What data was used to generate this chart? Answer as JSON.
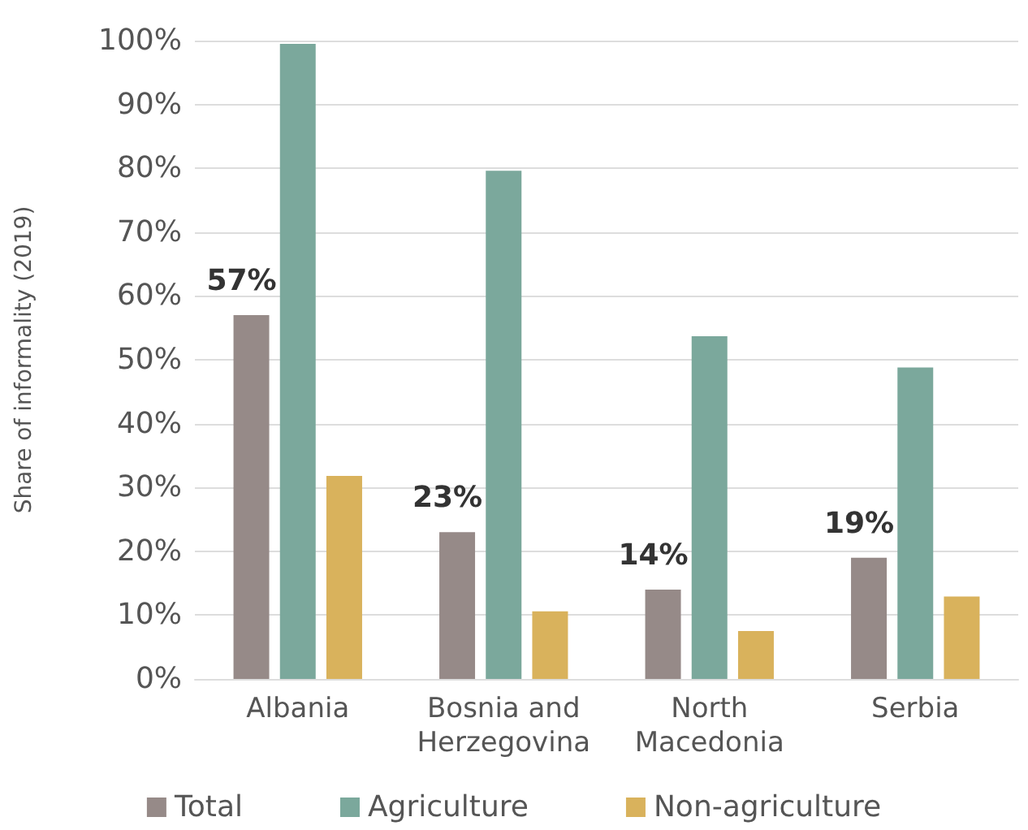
{
  "chart_data": {
    "type": "bar",
    "ylabel": "Share of informality (2019)",
    "categories": [
      "Albania",
      "Bosnia and\nHerzegovina",
      "North\nMacedonia",
      "Serbia"
    ],
    "series": [
      {
        "name": "Total",
        "color": "#968a88",
        "values": [
          57,
          23,
          14,
          19
        ],
        "value_labels": [
          "57%",
          "23%",
          "14%",
          "19%"
        ]
      },
      {
        "name": "Agriculture",
        "color": "#7ba89c",
        "values": [
          99.5,
          79.6,
          53.7,
          48.8
        ]
      },
      {
        "name": "Non-agriculture",
        "color": "#d9b25c",
        "values": [
          31.8,
          10.6,
          7.5,
          12.9
        ]
      }
    ],
    "ylim": [
      0,
      100
    ],
    "yticks": [
      {
        "value": 0,
        "label": "0%"
      },
      {
        "value": 10,
        "label": "10%"
      },
      {
        "value": 20,
        "label": "20%"
      },
      {
        "value": 30,
        "label": "30%"
      },
      {
        "value": 40,
        "label": "40%"
      },
      {
        "value": 50,
        "label": "50%"
      },
      {
        "value": 60,
        "label": "60%"
      },
      {
        "value": 70,
        "label": "70%"
      },
      {
        "value": 80,
        "label": "80%"
      },
      {
        "value": 90,
        "label": "90%"
      },
      {
        "value": 100,
        "label": "100%"
      }
    ],
    "grid": "y",
    "legend": "bottom"
  }
}
